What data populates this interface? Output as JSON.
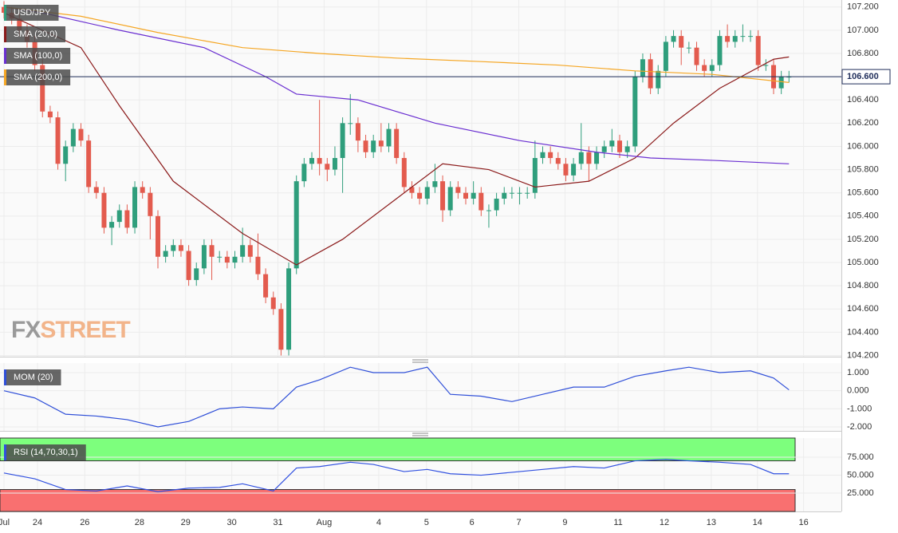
{
  "chart_data": {
    "type": "candlestick",
    "title": "USD/JPY",
    "up_color": "#2f9e7c",
    "down_color": "#e35b4e",
    "ylim": [
      104.19,
      107.26
    ],
    "yticks": [
      {
        "value": 104.2,
        "label": "104.200"
      },
      {
        "value": 104.4,
        "label": "104.400"
      },
      {
        "value": 104.6,
        "label": "104.600"
      },
      {
        "value": 104.8,
        "label": "104.800"
      },
      {
        "value": 105,
        "label": "105.000"
      },
      {
        "value": 105.2,
        "label": "105.200"
      },
      {
        "value": 105.4,
        "label": "105.400"
      },
      {
        "value": 105.6,
        "label": "105.600"
      },
      {
        "value": 105.8,
        "label": "105.800"
      },
      {
        "value": 106,
        "label": "106.000"
      },
      {
        "value": 106.2,
        "label": "106.200"
      },
      {
        "value": 106.4,
        "label": "106.400"
      },
      {
        "value": 106.6,
        "label": "106.600"
      },
      {
        "value": 106.8,
        "label": "106.800"
      },
      {
        "value": 107,
        "label": "107.000"
      },
      {
        "value": 107.2,
        "label": "107.200"
      }
    ],
    "xticks": [
      {
        "value": 0,
        "label": "Jul"
      },
      {
        "value": 4.35,
        "label": "24"
      },
      {
        "value": 10.5,
        "label": "26"
      },
      {
        "value": 17.6,
        "label": "28"
      },
      {
        "value": 23.6,
        "label": "29"
      },
      {
        "value": 29.6,
        "label": "30"
      },
      {
        "value": 35.6,
        "label": "31"
      },
      {
        "value": 41.6,
        "label": "Aug"
      },
      {
        "value": 48.7,
        "label": "4"
      },
      {
        "value": 54.9,
        "label": "5"
      },
      {
        "value": 60.8,
        "label": "6"
      },
      {
        "value": 66.9,
        "label": "7"
      },
      {
        "value": 72.9,
        "label": "9"
      },
      {
        "value": 79.8,
        "label": "11"
      },
      {
        "value": 85.8,
        "label": "12"
      },
      {
        "value": 91.9,
        "label": "13"
      },
      {
        "value": 97.9,
        "label": "14"
      },
      {
        "value": 103.9,
        "label": "16"
      }
    ],
    "open": [
      107.2,
      107.15,
      107.1,
      107.0,
      106.9,
      106.7,
      106.3,
      106.25,
      105.85,
      106.0,
      106.15,
      106.05,
      105.65,
      105.6,
      105.3,
      105.35,
      105.45,
      105.3,
      105.65,
      105.6,
      105.4,
      105.05,
      105.1,
      105.15,
      105.1,
      104.85,
      104.95,
      105.15,
      105.05,
      105.05,
      105.0,
      105.05,
      105.15,
      105.05,
      104.9,
      104.7,
      104.6,
      104.25,
      104.95,
      105.7,
      105.85,
      105.9,
      105.85,
      105.8,
      105.9,
      106.2,
      106.2,
      106.05,
      105.95,
      106.05,
      106.0,
      106.15,
      105.9,
      105.65,
      105.6,
      105.55,
      105.65,
      105.7,
      105.45,
      105.65,
      105.6,
      105.55,
      105.6,
      105.45,
      105.45,
      105.55,
      105.6,
      105.6,
      105.6,
      105.6,
      105.9,
      105.95,
      105.9,
      105.85,
      105.75,
      105.85,
      105.95,
      105.85,
      105.95,
      106.0,
      106.05,
      105.95,
      106.0,
      106.6,
      106.75,
      106.5,
      106.65,
      106.9,
      106.95,
      106.85,
      106.85,
      106.7,
      106.65,
      106.7,
      106.95,
      106.9,
      106.95,
      106.95,
      106.95,
      106.7,
      106.7,
      106.5,
      106.6
    ],
    "high": [
      107.25,
      107.2,
      107.15,
      107.05,
      106.95,
      106.75,
      106.35,
      106.3,
      106.05,
      106.2,
      106.2,
      106.1,
      105.7,
      105.65,
      105.4,
      105.5,
      105.5,
      105.7,
      105.7,
      105.65,
      105.45,
      105.15,
      105.2,
      105.2,
      105.15,
      105.0,
      105.2,
      105.2,
      105.1,
      105.1,
      105.1,
      105.3,
      105.2,
      105.25,
      104.95,
      104.75,
      104.65,
      105.0,
      105.75,
      105.9,
      105.95,
      106.4,
      105.9,
      106.0,
      106.25,
      106.45,
      106.25,
      106.1,
      106.1,
      106.2,
      106.2,
      106.2,
      105.95,
      105.7,
      105.65,
      105.7,
      105.85,
      105.75,
      105.7,
      105.7,
      105.65,
      105.7,
      105.65,
      105.5,
      105.6,
      105.65,
      105.65,
      105.65,
      105.65,
      106.05,
      106.0,
      106.0,
      105.95,
      105.9,
      105.9,
      106.2,
      106.0,
      106.0,
      106.05,
      106.15,
      106.1,
      106.05,
      106.65,
      106.8,
      106.8,
      106.7,
      106.95,
      107.0,
      107.0,
      106.9,
      106.9,
      106.75,
      106.75,
      107.0,
      107.05,
      107.0,
      107.05,
      107.0,
      107.0,
      106.75,
      106.75,
      106.65,
      106.65
    ],
    "low": [
      107.1,
      107.05,
      106.95,
      106.85,
      106.65,
      106.25,
      106.2,
      105.8,
      105.7,
      105.95,
      106.0,
      105.6,
      105.55,
      105.25,
      105.15,
      105.3,
      105.25,
      105.25,
      105.55,
      105.2,
      104.95,
      105.0,
      105.05,
      105.05,
      104.8,
      104.8,
      104.9,
      104.85,
      105.0,
      104.95,
      104.95,
      105.0,
      105.0,
      104.85,
      104.65,
      104.55,
      104.2,
      104.2,
      104.9,
      105.65,
      105.8,
      105.75,
      105.7,
      105.75,
      105.6,
      106.1,
      105.95,
      105.9,
      105.9,
      105.95,
      105.95,
      105.85,
      105.6,
      105.55,
      105.5,
      105.5,
      105.6,
      105.35,
      105.4,
      105.55,
      105.5,
      105.5,
      105.4,
      105.3,
      105.4,
      105.5,
      105.55,
      105.5,
      105.55,
      105.55,
      105.85,
      105.85,
      105.8,
      105.7,
      105.7,
      105.8,
      105.7,
      105.8,
      105.9,
      105.95,
      105.9,
      105.9,
      105.95,
      106.55,
      106.45,
      106.45,
      106.6,
      106.85,
      106.7,
      106.8,
      106.65,
      106.6,
      106.6,
      106.65,
      106.85,
      106.85,
      106.9,
      106.9,
      106.65,
      106.65,
      106.45,
      106.45,
      106.55
    ],
    "close": [
      107.15,
      107.1,
      107.0,
      106.9,
      106.7,
      106.3,
      106.25,
      105.85,
      106.0,
      106.15,
      106.05,
      105.65,
      105.6,
      105.3,
      105.35,
      105.45,
      105.3,
      105.65,
      105.6,
      105.4,
      105.05,
      105.1,
      105.15,
      105.1,
      104.85,
      104.95,
      105.15,
      105.05,
      105.05,
      105.0,
      105.05,
      105.15,
      105.05,
      104.9,
      104.7,
      104.6,
      104.25,
      104.95,
      105.7,
      105.85,
      105.9,
      105.85,
      105.8,
      105.9,
      106.2,
      106.2,
      106.05,
      105.95,
      106.05,
      106.0,
      106.15,
      105.9,
      105.65,
      105.6,
      105.55,
      105.65,
      105.7,
      105.45,
      105.65,
      105.6,
      105.55,
      105.6,
      105.45,
      105.45,
      105.55,
      105.6,
      105.6,
      105.6,
      105.6,
      105.9,
      105.95,
      105.9,
      105.85,
      105.75,
      105.85,
      105.95,
      105.85,
      105.95,
      106.0,
      106.05,
      105.95,
      106.0,
      106.6,
      106.75,
      106.5,
      106.65,
      106.9,
      106.95,
      106.85,
      106.85,
      106.7,
      106.65,
      106.7,
      106.95,
      106.9,
      106.95,
      106.95,
      106.95,
      106.7,
      106.7,
      106.5,
      106.6,
      106.6
    ],
    "last_price": {
      "value": 106.6,
      "label": "106.600"
    },
    "overlays": [
      {
        "name": "SMA (20,0)",
        "color": "#8b1a1a",
        "x": [
          0,
          10,
          15,
          22,
          31,
          38,
          44,
          51,
          57,
          63,
          69,
          76,
          82,
          87,
          93,
          100,
          102
        ],
        "values": [
          107.15,
          106.85,
          106.35,
          105.7,
          105.25,
          104.98,
          105.2,
          105.55,
          105.85,
          105.8,
          105.65,
          105.7,
          105.9,
          106.2,
          106.5,
          106.75,
          106.77
        ]
      },
      {
        "name": "SMA (100,0)",
        "color": "#6a2fd1",
        "x": [
          0,
          5,
          15,
          26,
          34,
          38,
          46,
          56,
          67,
          77,
          84,
          92,
          102
        ],
        "values": [
          107.2,
          107.15,
          107.0,
          106.85,
          106.6,
          106.45,
          106.4,
          106.2,
          106.05,
          105.95,
          105.9,
          105.88,
          105.85
        ]
      },
      {
        "name": "SMA (200,0)",
        "color": "#f5a623",
        "x": [
          0,
          10,
          20,
          31,
          41,
          51,
          62,
          72,
          82,
          92,
          102
        ],
        "values": [
          107.2,
          107.12,
          106.98,
          106.85,
          106.8,
          106.76,
          106.73,
          106.7,
          106.65,
          106.62,
          106.55
        ]
      }
    ],
    "indicators": [
      {
        "name": "MOM (20)",
        "color": "#2f4fd8",
        "ylim": [
          -2.22,
          1.53
        ],
        "yticks": [
          {
            "value": 1,
            "label": "1.000"
          },
          {
            "value": 0,
            "label": "0.000"
          },
          {
            "value": -1,
            "label": "-1.000"
          },
          {
            "value": -2,
            "label": "-2.000"
          }
        ],
        "x": [
          0,
          4,
          8,
          12,
          16,
          20,
          24,
          28,
          31,
          35,
          38,
          41,
          45,
          48,
          52,
          55,
          58,
          62,
          66,
          70,
          74,
          78,
          82,
          86,
          89,
          93,
          97,
          100,
          102
        ],
        "values": [
          0.0,
          -0.4,
          -1.3,
          -1.4,
          -1.6,
          -2.0,
          -1.7,
          -1.0,
          -0.9,
          -1.0,
          0.2,
          0.6,
          1.3,
          1.0,
          1.0,
          1.3,
          -0.2,
          -0.3,
          -0.6,
          -0.2,
          0.2,
          0.2,
          0.8,
          1.1,
          1.3,
          1.0,
          1.1,
          0.7,
          0.05
        ]
      },
      {
        "name": "RSI (14,70,30,1)",
        "color": "#3050e0",
        "ylim": [
          -0.5,
          101.7
        ],
        "upper": 70,
        "lower": 30,
        "yticks": [
          {
            "value": 75,
            "label": "75.000"
          },
          {
            "value": 50,
            "label": "50.000"
          },
          {
            "value": 25,
            "label": "25.000"
          }
        ],
        "x": [
          0,
          4,
          8,
          12,
          16,
          20,
          24,
          28,
          31,
          35,
          38,
          41,
          45,
          48,
          52,
          55,
          58,
          62,
          66,
          70,
          74,
          78,
          82,
          86,
          89,
          93,
          97,
          100,
          102
        ],
        "values": [
          53,
          45,
          30,
          28,
          35,
          27,
          32,
          33,
          38,
          28,
          60,
          62,
          68,
          65,
          55,
          58,
          52,
          50,
          54,
          58,
          62,
          60,
          70,
          72,
          70,
          68,
          65,
          52,
          52
        ]
      }
    ],
    "logo": [
      "FX",
      "STREET"
    ]
  }
}
